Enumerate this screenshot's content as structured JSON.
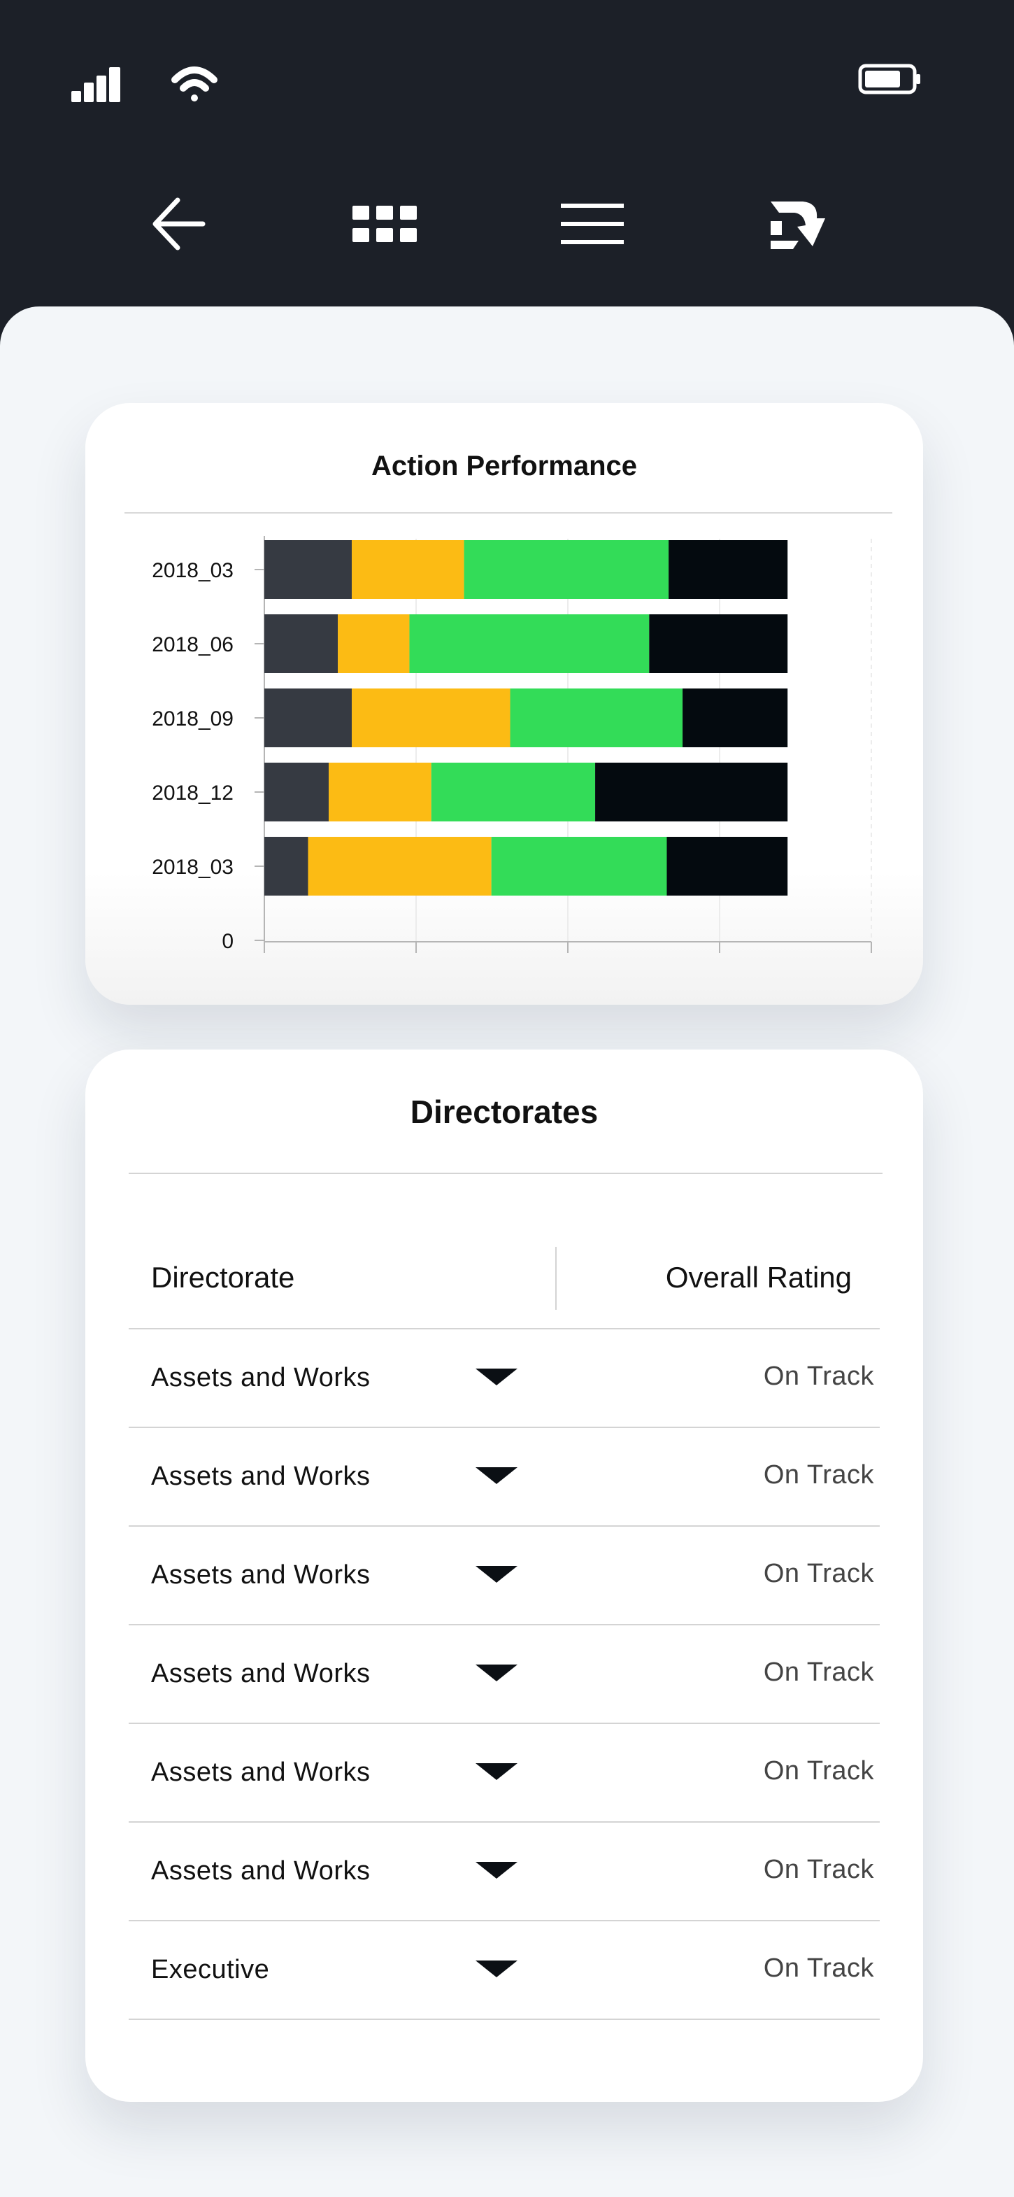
{
  "status_bar": {
    "signal_icon": "signal-strength-icon",
    "wifi_icon": "wifi-icon",
    "battery_icon": "battery-icon"
  },
  "nav": {
    "back_icon": "arrow-left-icon",
    "grid_icon": "grid-icon",
    "menu_icon": "hamburger-menu-icon",
    "logo_icon": "brand-logo-icon"
  },
  "colors": {
    "header_bg": "#1c2028",
    "sheet_bg": "#f3f6f9",
    "segment_1": "#363a42",
    "segment_2": "#fcbb14",
    "segment_3": "#33dc58",
    "segment_4": "#040a0f"
  },
  "chart": {
    "title": "Action Performance"
  },
  "chart_data": {
    "type": "bar",
    "orientation": "horizontal",
    "stacked": true,
    "title": "Action Performance",
    "categories": [
      "2018_03",
      "2018_06",
      "2018_09",
      "2018_12",
      "2018_03"
    ],
    "zero_label": "0",
    "xlim": [
      0,
      100
    ],
    "grid": true,
    "series": [
      {
        "values": [
          14.4,
          12.1,
          14.4,
          10.6,
          7.2
        ],
        "color": "#363a42"
      },
      {
        "values": [
          18.5,
          11.8,
          26.1,
          16.9,
          30.2
        ],
        "color": "#fcbb14"
      },
      {
        "values": [
          33.7,
          39.5,
          28.4,
          27.0,
          28.9
        ],
        "color": "#33dc58"
      },
      {
        "values": [
          19.6,
          22.8,
          17.3,
          31.7,
          19.9
        ],
        "color": "#040a0f"
      }
    ]
  },
  "directorates": {
    "title": "Directorates",
    "col_directorate": "Directorate",
    "col_rating": "Overall Rating",
    "rows": [
      {
        "name": "Assets and Works",
        "rating": "On Track"
      },
      {
        "name": "Assets and Works",
        "rating": "On Track"
      },
      {
        "name": "Assets and Works",
        "rating": "On Track"
      },
      {
        "name": "Assets and Works",
        "rating": "On Track"
      },
      {
        "name": "Assets and Works",
        "rating": "On Track"
      },
      {
        "name": "Assets and Works",
        "rating": "On Track"
      },
      {
        "name": "Executive",
        "rating": "On Track"
      }
    ]
  }
}
